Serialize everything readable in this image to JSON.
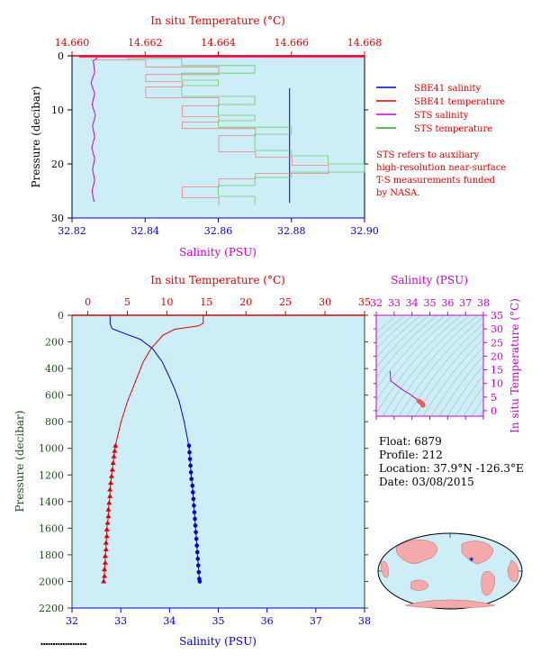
{
  "colors": {
    "plot_bg": "#cdeef6",
    "red": "#e00000",
    "blue": "#0000cc",
    "magenta": "#cc00cc",
    "green": "#22aa22",
    "pink_temp": "#f08080",
    "light_green": "#66cc66",
    "dark_green": "#1e4d1e",
    "pressure_axis": "#1e4d1e"
  },
  "chart_data": [
    {
      "type": "line",
      "id": "near_surface_profile",
      "top_axis_label": "In situ Temperature (°C)",
      "top_ticks": [
        "14.660",
        "14.662",
        "14.664",
        "14.666",
        "14.668"
      ],
      "bottom_axis_label": "Salinity (PSU)",
      "bottom_ticks": [
        "32.82",
        "32.84",
        "32.86",
        "32.88",
        "32.90"
      ],
      "ylabel": "Pressure (decibar)",
      "y_ticks": [
        "0",
        "10",
        "20",
        "30"
      ],
      "xlim_salinity": [
        32.82,
        32.9
      ],
      "xlim_temperature": [
        14.66,
        14.668
      ],
      "ylim": [
        0,
        30
      ],
      "legend": [
        {
          "label": "SBE41 salinity",
          "color": "#0000cc"
        },
        {
          "label": "SBE41 temperature",
          "color": "#e00000"
        },
        {
          "label": "STS salinity",
          "color": "#cc00cc"
        },
        {
          "label": "STS temperature",
          "color": "#22aa22"
        }
      ],
      "note": [
        "STS refers to auxiliary",
        "high-resolution near-surface",
        "T-S measurements funded",
        "by NASA."
      ],
      "series": [
        {
          "name": "SBE41 salinity",
          "axis": "salinity",
          "points": [
            [
              32.8795,
              6
            ],
            [
              32.8795,
              27.2
            ]
          ]
        },
        {
          "name": "SBE41 temperature",
          "axis": "temperature",
          "points": [
            [
              14.6602,
              0.1
            ],
            [
              14.668,
              0.1
            ]
          ]
        },
        {
          "name": "STS salinity",
          "axis": "salinity",
          "points": [
            [
              32.827,
              0.3
            ],
            [
              32.8258,
              1
            ],
            [
              32.8262,
              3
            ],
            [
              32.8252,
              5
            ],
            [
              32.8262,
              7
            ],
            [
              32.8255,
              9
            ],
            [
              32.8264,
              11
            ],
            [
              32.8256,
              13
            ],
            [
              32.8262,
              15
            ],
            [
              32.8254,
              17
            ],
            [
              32.8262,
              19
            ],
            [
              32.8256,
              21
            ],
            [
              32.8262,
              23
            ],
            [
              32.8255,
              25
            ],
            [
              32.826,
              27
            ]
          ]
        },
        {
          "name": "STS temperature",
          "axis": "temperature",
          "points": [
            [
              14.6615,
              0.5
            ],
            [
              14.663,
              0.5
            ],
            [
              14.663,
              1.8
            ],
            [
              14.665,
              1.8
            ],
            [
              14.665,
              3.2
            ],
            [
              14.663,
              3.2
            ],
            [
              14.663,
              4.5
            ],
            [
              14.664,
              4.5
            ],
            [
              14.664,
              5.5
            ],
            [
              14.663,
              5.5
            ],
            [
              14.663,
              7.5
            ],
            [
              14.665,
              7.5
            ],
            [
              14.665,
              9
            ],
            [
              14.664,
              9
            ],
            [
              14.664,
              11
            ],
            [
              14.665,
              11
            ],
            [
              14.665,
              12
            ],
            [
              14.664,
              12
            ],
            [
              14.664,
              13.2
            ],
            [
              14.666,
              13.2
            ],
            [
              14.666,
              14.5
            ],
            [
              14.665,
              14.5
            ],
            [
              14.665,
              17.5
            ],
            [
              14.666,
              17.5
            ],
            [
              14.666,
              18.5
            ],
            [
              14.667,
              18.5
            ],
            [
              14.667,
              20
            ],
            [
              14.668,
              20
            ],
            [
              14.668,
              21.5
            ],
            [
              14.666,
              21.5
            ],
            [
              14.666,
              22.5
            ],
            [
              14.665,
              22.5
            ],
            [
              14.665,
              24
            ],
            [
              14.664,
              24
            ],
            [
              14.664,
              26
            ],
            [
              14.665,
              26
            ],
            [
              14.665,
              27.5
            ]
          ]
        }
      ]
    },
    {
      "type": "line",
      "id": "full_profile",
      "top_axis_label": "In situ Temperature (°C)",
      "top_ticks": [
        "0",
        "5",
        "10",
        "15",
        "20",
        "25",
        "30",
        "35"
      ],
      "bottom_axis_label": "Salinity (PSU)",
      "bottom_ticks": [
        "32",
        "33",
        "34",
        "35",
        "36",
        "37",
        "38"
      ],
      "ylabel": "Pressure (decibar)",
      "y_ticks": [
        "0",
        "200",
        "400",
        "600",
        "800",
        "1000",
        "1200",
        "1400",
        "1600",
        "1800",
        "2000",
        "2200"
      ],
      "xlim_salinity": [
        32,
        38
      ],
      "xlim_temperature": [
        -2,
        35
      ],
      "ylim": [
        0,
        2200
      ],
      "series": [
        {
          "name": "Temperature",
          "axis": "temperature",
          "line": [
            [
              14.6,
              0
            ],
            [
              14.6,
              60
            ],
            [
              14,
              80
            ],
            [
              11,
              105
            ],
            [
              9.5,
              150
            ],
            [
              8,
              250
            ],
            [
              7,
              350
            ],
            [
              6,
              500
            ],
            [
              5,
              650
            ],
            [
              4.2,
              800
            ],
            [
              3.6,
              950
            ],
            [
              3.5,
              1000
            ]
          ],
          "markers": [
            [
              3.5,
              980
            ],
            [
              3.4,
              1020
            ],
            [
              3.3,
              1060
            ],
            [
              3.2,
              1110
            ],
            [
              3.1,
              1160
            ],
            [
              3.0,
              1210
            ],
            [
              2.9,
              1260
            ],
            [
              2.8,
              1310
            ],
            [
              2.8,
              1360
            ],
            [
              2.7,
              1410
            ],
            [
              2.6,
              1460
            ],
            [
              2.6,
              1510
            ],
            [
              2.5,
              1560
            ],
            [
              2.4,
              1610
            ],
            [
              2.4,
              1660
            ],
            [
              2.3,
              1710
            ],
            [
              2.3,
              1760
            ],
            [
              2.2,
              1810
            ],
            [
              2.2,
              1860
            ],
            [
              2.1,
              1910
            ],
            [
              2.1,
              1960
            ],
            [
              2.0,
              2000
            ]
          ]
        },
        {
          "name": "Salinity",
          "axis": "salinity",
          "line": [
            [
              32.78,
              0
            ],
            [
              32.78,
              60
            ],
            [
              32.82,
              100
            ],
            [
              33.1,
              140
            ],
            [
              33.4,
              180
            ],
            [
              33.65,
              250
            ],
            [
              33.85,
              350
            ],
            [
              33.98,
              450
            ],
            [
              34.1,
              550
            ],
            [
              34.2,
              650
            ],
            [
              34.3,
              800
            ],
            [
              34.38,
              950
            ],
            [
              34.4,
              1000
            ]
          ],
          "markers": [
            [
              34.4,
              980
            ],
            [
              34.41,
              1030
            ],
            [
              34.42,
              1080
            ],
            [
              34.43,
              1130
            ],
            [
              34.44,
              1180
            ],
            [
              34.45,
              1230
            ],
            [
              34.47,
              1280
            ],
            [
              34.48,
              1330
            ],
            [
              34.49,
              1380
            ],
            [
              34.5,
              1430
            ],
            [
              34.51,
              1480
            ],
            [
              34.52,
              1530
            ],
            [
              34.53,
              1580
            ],
            [
              34.54,
              1630
            ],
            [
              34.55,
              1680
            ],
            [
              34.56,
              1730
            ],
            [
              34.57,
              1780
            ],
            [
              34.58,
              1830
            ],
            [
              34.59,
              1880
            ],
            [
              34.6,
              1930
            ],
            [
              34.61,
              1980
            ],
            [
              34.62,
              2000
            ]
          ]
        }
      ]
    },
    {
      "type": "scatter",
      "id": "ts_diagram",
      "top_axis_label": "Salinity (PSU)",
      "top_ticks": [
        "32",
        "33",
        "34",
        "35",
        "36",
        "37",
        "38"
      ],
      "right_axis_label": "In situ Temperature (°C)",
      "right_ticks": [
        "0",
        "5",
        "10",
        "15",
        "20",
        "25",
        "30",
        "35"
      ],
      "xlim": [
        32,
        38
      ],
      "ylim": [
        -2,
        35
      ],
      "grid": "density contours",
      "series": [
        {
          "name": "T-S",
          "line": [
            [
              32.78,
              14.6
            ],
            [
              32.8,
              11
            ],
            [
              33.1,
              9.5
            ],
            [
              33.4,
              8
            ],
            [
              33.65,
              7
            ],
            [
              33.9,
              6
            ],
            [
              34.1,
              5
            ],
            [
              34.3,
              4
            ]
          ],
          "markers": [
            [
              34.4,
              3.5
            ],
            [
              34.45,
              3.2
            ],
            [
              34.5,
              3.0
            ],
            [
              34.55,
              2.7
            ],
            [
              34.6,
              2.4
            ],
            [
              34.62,
              2.0
            ]
          ]
        }
      ]
    }
  ],
  "info": {
    "float": "Float:  6879",
    "profile": "Profile:  212",
    "location": "Location:  37.9°N  -126.3°E",
    "date": "Date:  03/08/2015"
  },
  "map": {
    "marker_color": "#0000cc",
    "description_icon": "world-map"
  }
}
